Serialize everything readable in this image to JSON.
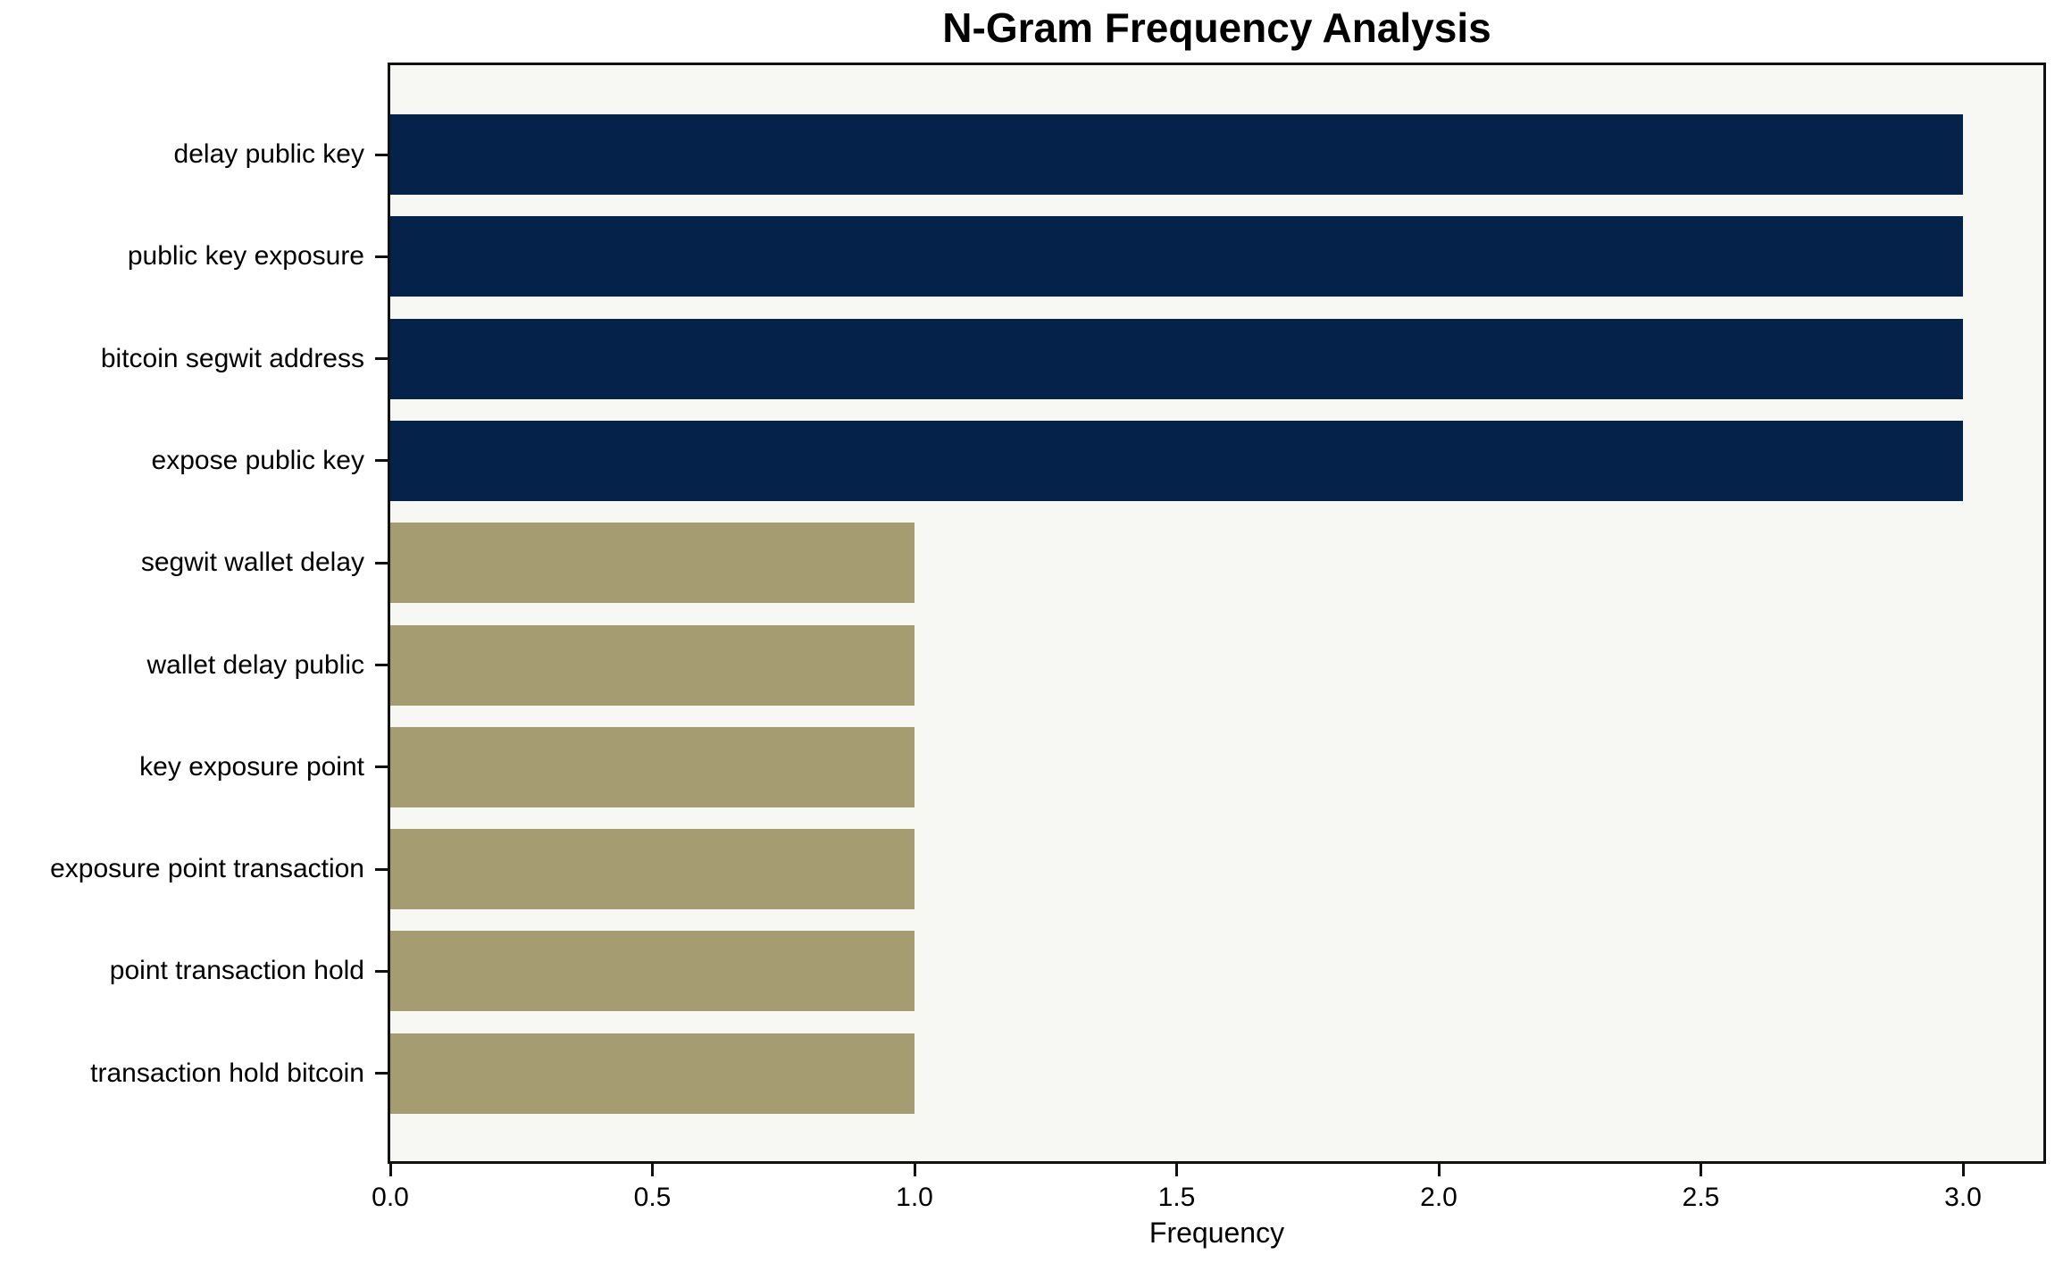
{
  "page": {
    "title": "N-Gram Frequency Analysis"
  },
  "chart_data": {
    "type": "bar",
    "orientation": "horizontal",
    "title": "N-Gram Frequency Analysis",
    "xlabel": "Frequency",
    "ylabel": "",
    "categories": [
      "delay public key",
      "public key exposure",
      "bitcoin segwit address",
      "expose public key",
      "segwit wallet delay",
      "wallet delay public",
      "key exposure point",
      "exposure point transaction",
      "point transaction hold",
      "transaction hold bitcoin"
    ],
    "values": [
      3,
      3,
      3,
      3,
      1,
      1,
      1,
      1,
      1,
      1
    ],
    "bar_colors": [
      "#05224a",
      "#05224a",
      "#05224a",
      "#05224a",
      "#a69c72",
      "#a69c72",
      "#a69c72",
      "#a69c72",
      "#a69c72",
      "#a69c72"
    ],
    "xlim": [
      0,
      3.16
    ],
    "xticks": [
      0,
      0.5,
      1,
      1.5,
      2,
      2.5,
      3
    ],
    "xtick_labels": [
      "0.0",
      "0.5",
      "1.0",
      "1.5",
      "2.0",
      "2.5",
      "3.0"
    ],
    "grid": false,
    "legend": "none",
    "colors": {
      "high_freq": "#05224a",
      "low_freq": "#a69c72",
      "plot_background": "#f7f7f4",
      "figure_background": "#ffffff",
      "axis": "#111111",
      "text": "#000000"
    }
  }
}
